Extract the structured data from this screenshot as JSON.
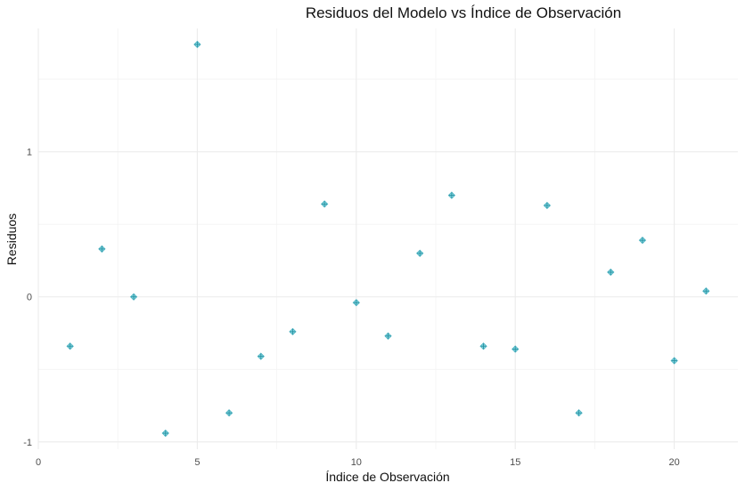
{
  "chart_data": {
    "type": "scatter",
    "title": "Residuos del Modelo vs Índice de Observación",
    "xlabel": "Índice de Observación",
    "ylabel": "Residuos",
    "xlim": [
      0,
      22
    ],
    "ylim": [
      -1.05,
      1.85
    ],
    "x_ticks": [
      0,
      5,
      10,
      15,
      20
    ],
    "y_ticks": [
      -1,
      0,
      1
    ],
    "x_tick_labels": [
      "0",
      "5",
      "10",
      "15",
      "20"
    ],
    "y_tick_labels": [
      "-1",
      "0",
      "1"
    ],
    "grid": true,
    "marker_color": "#4fb3c2",
    "marker_fill": "#7fd7e0",
    "x": [
      1,
      2,
      3,
      4,
      5,
      6,
      7,
      8,
      9,
      10,
      11,
      12,
      13,
      14,
      15,
      16,
      17,
      18,
      19,
      20,
      21
    ],
    "y": [
      -0.34,
      0.33,
      0.0,
      -0.94,
      1.74,
      -0.8,
      -0.41,
      -0.24,
      0.64,
      -0.04,
      -0.27,
      0.3,
      0.7,
      -0.34,
      -0.36,
      0.63,
      -0.8,
      0.17,
      0.39,
      -0.44,
      0.04
    ]
  }
}
